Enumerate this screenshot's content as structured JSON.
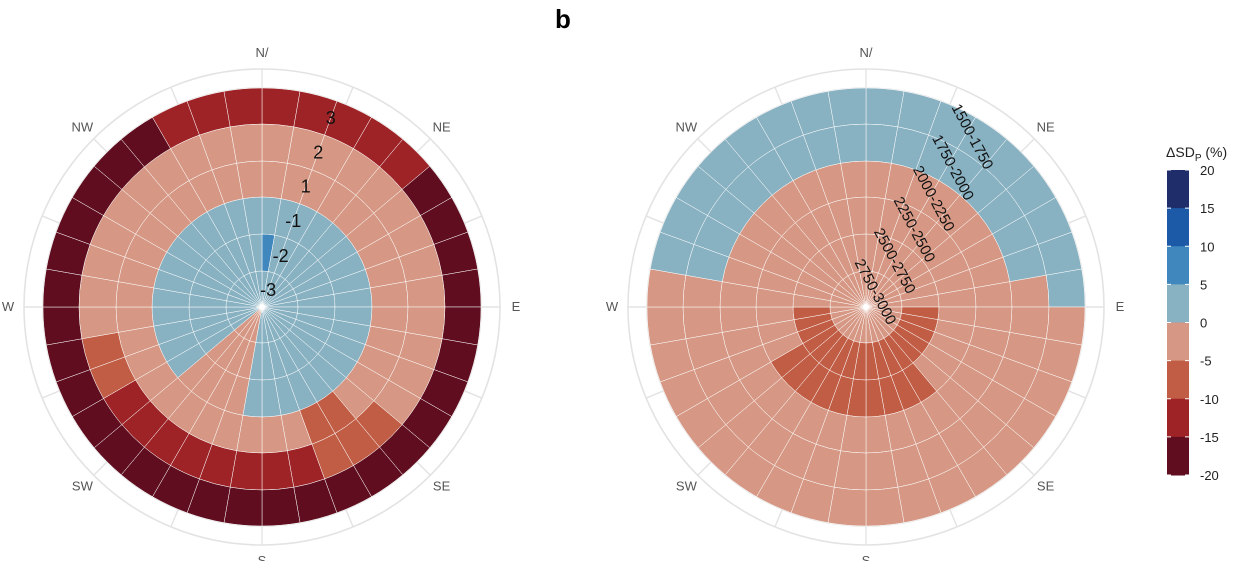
{
  "panel_label": "b",
  "colors": {
    "background": "#ffffff",
    "gridline": "#e3e3e3",
    "wedge_border": "#ffffff"
  },
  "legend": {
    "title_parts": [
      "ΔSD",
      "P",
      " (%)"
    ],
    "ticks": [
      "20",
      "15",
      "10",
      "5",
      "0",
      "-5",
      "-10",
      "-15",
      "-20"
    ],
    "colors": [
      "#1f2d6b",
      "#1c5aa8",
      "#3f87bd",
      "#88b1c2",
      "#d69884",
      "#c15d45",
      "#9e2327",
      "#5f0d1f"
    ]
  },
  "chart_data": [
    {
      "type": "polar-bar",
      "directions": [
        "N/",
        "NE",
        "E",
        "SE",
        "S",
        "SW",
        "W",
        "NW"
      ],
      "sectors": 36,
      "rings": [
        {
          "label": "-3",
          "class_by_sector": [
            3,
            3,
            3,
            3,
            3,
            3,
            3,
            3,
            3,
            3,
            3,
            3,
            3,
            3,
            3,
            3,
            3,
            3,
            3,
            4,
            4,
            4,
            4,
            3,
            3,
            3,
            3,
            3,
            3,
            3,
            3,
            3,
            3,
            3,
            3,
            3
          ]
        },
        {
          "label": "-2",
          "class_by_sector": [
            2,
            3,
            3,
            3,
            3,
            3,
            3,
            3,
            3,
            3,
            3,
            3,
            3,
            3,
            3,
            3,
            3,
            3,
            3,
            4,
            4,
            4,
            4,
            3,
            3,
            3,
            3,
            3,
            3,
            3,
            3,
            3,
            3,
            3,
            3,
            3
          ]
        },
        {
          "label": "-1",
          "class_by_sector": [
            3,
            3,
            3,
            3,
            3,
            3,
            3,
            3,
            3,
            3,
            3,
            3,
            3,
            3,
            3,
            3,
            3,
            3,
            3,
            4,
            4,
            4,
            4,
            3,
            3,
            3,
            3,
            3,
            3,
            3,
            3,
            3,
            3,
            3,
            3,
            3
          ]
        },
        {
          "label": "1",
          "class_by_sector": [
            4,
            4,
            4,
            4,
            4,
            4,
            4,
            4,
            4,
            4,
            4,
            4,
            4,
            4,
            5,
            5,
            4,
            4,
            4,
            4,
            4,
            4,
            4,
            4,
            4,
            4,
            4,
            4,
            4,
            4,
            4,
            4,
            4,
            4,
            4,
            4
          ]
        },
        {
          "label": "2",
          "class_by_sector": [
            4,
            4,
            4,
            4,
            4,
            4,
            4,
            4,
            4,
            4,
            4,
            4,
            4,
            5,
            5,
            5,
            6,
            6,
            6,
            6,
            6,
            6,
            6,
            6,
            5,
            5,
            4,
            4,
            4,
            4,
            4,
            4,
            4,
            4,
            4,
            4
          ]
        },
        {
          "label": "3",
          "class_by_sector": [
            6,
            6,
            6,
            6,
            6,
            7,
            7,
            7,
            7,
            7,
            7,
            7,
            7,
            7,
            7,
            7,
            7,
            7,
            7,
            7,
            7,
            7,
            7,
            7,
            7,
            7,
            7,
            7,
            7,
            7,
            7,
            7,
            7,
            6,
            6,
            6
          ]
        }
      ]
    },
    {
      "type": "polar-bar",
      "directions": [
        "N/",
        "NE",
        "E",
        "SE",
        "S",
        "SW",
        "W",
        "NW"
      ],
      "sectors": 36,
      "rings": [
        {
          "label": "2750-3000",
          "class_by_sector": [
            4,
            4,
            4,
            4,
            4,
            4,
            4,
            4,
            4,
            4,
            4,
            4,
            4,
            4,
            4,
            4,
            4,
            4,
            4,
            4,
            4,
            4,
            4,
            4,
            4,
            4,
            4,
            4,
            4,
            4,
            4,
            4,
            4,
            4,
            4,
            4
          ]
        },
        {
          "label": "2500-2750",
          "class_by_sector": [
            4,
            4,
            4,
            4,
            4,
            4,
            4,
            4,
            4,
            5,
            5,
            5,
            5,
            5,
            5,
            5,
            5,
            5,
            5,
            5,
            5,
            5,
            5,
            5,
            5,
            5,
            5,
            4,
            4,
            4,
            4,
            4,
            4,
            4,
            4,
            4
          ]
        },
        {
          "label": "2250-2500",
          "class_by_sector": [
            4,
            4,
            4,
            4,
            4,
            4,
            4,
            4,
            4,
            4,
            4,
            4,
            4,
            4,
            5,
            5,
            5,
            5,
            5,
            5,
            5,
            5,
            5,
            5,
            4,
            4,
            4,
            4,
            4,
            4,
            4,
            4,
            4,
            4,
            4,
            4
          ]
        },
        {
          "label": "2000-2250",
          "class_by_sector": [
            4,
            4,
            4,
            4,
            4,
            4,
            4,
            4,
            4,
            4,
            4,
            4,
            4,
            4,
            4,
            4,
            4,
            4,
            4,
            4,
            4,
            4,
            4,
            4,
            4,
            4,
            4,
            4,
            4,
            4,
            4,
            4,
            4,
            4,
            4,
            4
          ]
        },
        {
          "label": "1750-2000",
          "class_by_sector": [
            3,
            3,
            3,
            3,
            3,
            3,
            3,
            3,
            4,
            4,
            4,
            4,
            4,
            4,
            4,
            4,
            4,
            4,
            4,
            4,
            4,
            4,
            4,
            4,
            4,
            4,
            4,
            4,
            3,
            3,
            3,
            3,
            3,
            3,
            3,
            3
          ]
        },
        {
          "label": "1500-1750",
          "class_by_sector": [
            3,
            3,
            3,
            3,
            3,
            3,
            3,
            3,
            3,
            4,
            4,
            4,
            4,
            4,
            4,
            4,
            4,
            4,
            4,
            4,
            4,
            4,
            4,
            4,
            4,
            4,
            4,
            4,
            3,
            3,
            3,
            3,
            3,
            3,
            3,
            3
          ]
        }
      ]
    }
  ]
}
